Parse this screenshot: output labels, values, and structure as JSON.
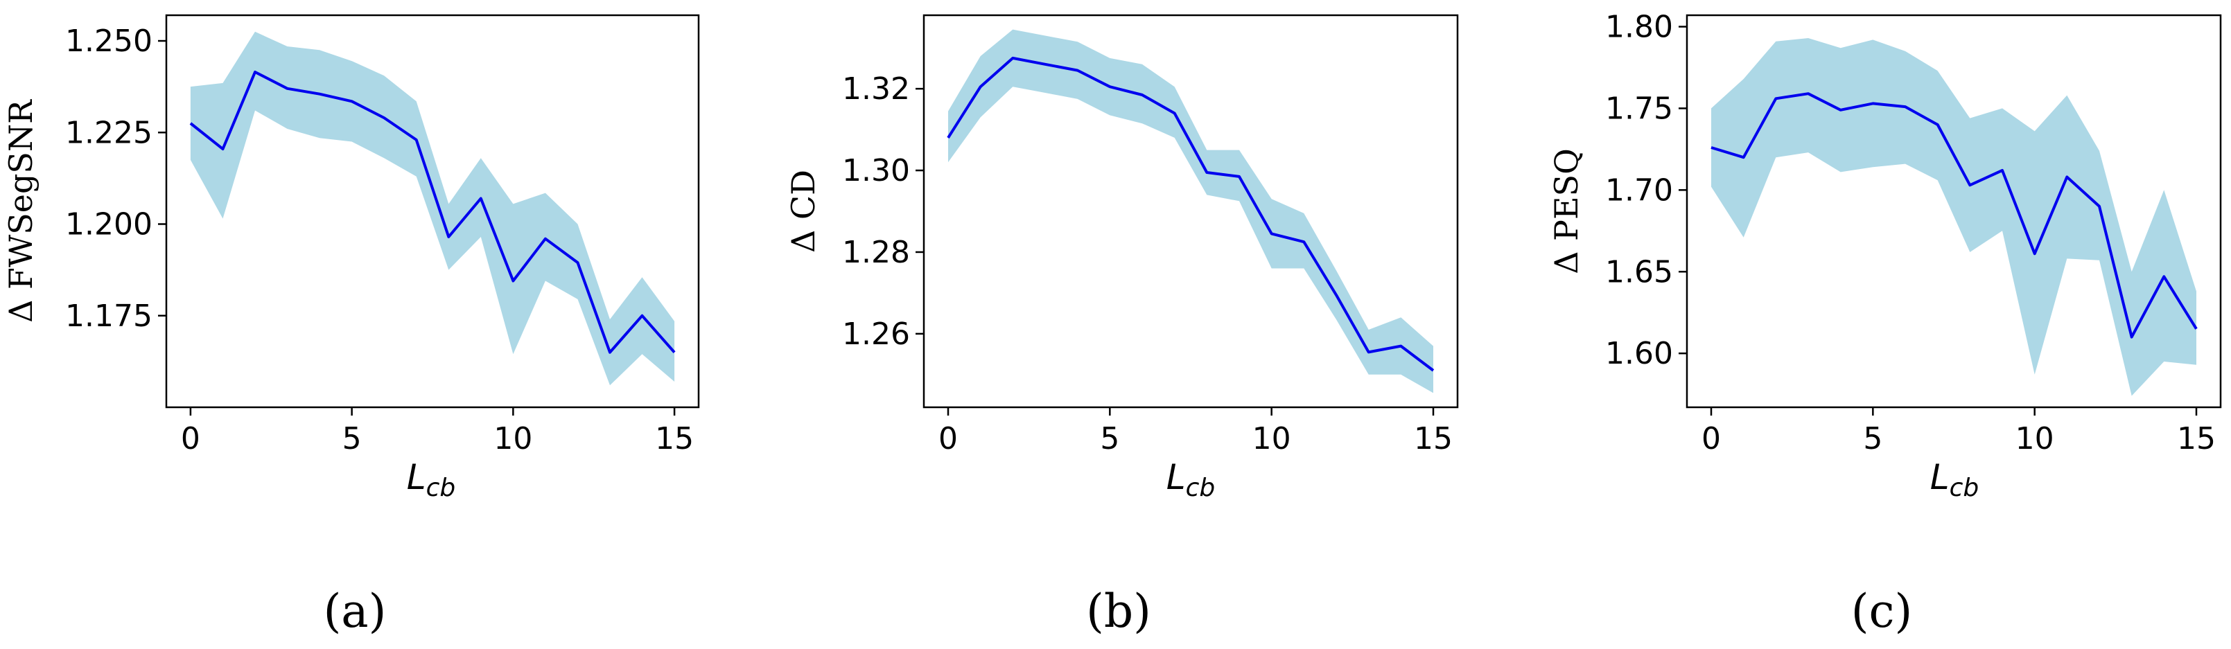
{
  "chart_data": [
    {
      "type": "line",
      "panel": "a",
      "caption": "(a)",
      "xlabel_main": "L",
      "xlabel_sub": "cb",
      "ylabel": "Δ FWSegSNR",
      "xlim": [
        -0.75,
        15.75
      ],
      "ylim": [
        1.15,
        1.257
      ],
      "xticks": [
        0,
        5,
        10,
        15
      ],
      "xtick_labels": [
        "0",
        "5",
        "10",
        "15"
      ],
      "yticks": [
        1.175,
        1.2,
        1.225,
        1.25
      ],
      "ytick_labels": [
        "1.175",
        "1.200",
        "1.225",
        "1.250"
      ],
      "line_color": "#0000ee",
      "band_color": "#add8e6",
      "x": [
        0,
        1,
        2,
        3,
        4,
        5,
        6,
        7,
        8,
        9,
        10,
        11,
        12,
        13,
        14,
        15
      ],
      "y": [
        1.2275,
        1.2205,
        1.2415,
        1.237,
        1.2355,
        1.2335,
        1.229,
        1.223,
        1.1965,
        1.207,
        1.1845,
        1.196,
        1.1895,
        1.165,
        1.175,
        1.165
      ],
      "upper": [
        1.2375,
        1.2385,
        1.2525,
        1.2485,
        1.2475,
        1.2445,
        1.2405,
        1.2335,
        1.2055,
        1.218,
        1.2055,
        1.2085,
        1.2,
        1.174,
        1.1855,
        1.1735
      ],
      "lower": [
        1.2175,
        1.2015,
        1.231,
        1.226,
        1.2235,
        1.2225,
        1.218,
        1.213,
        1.1875,
        1.1965,
        1.1645,
        1.1845,
        1.1795,
        1.156,
        1.1645,
        1.157
      ]
    },
    {
      "type": "line",
      "panel": "b",
      "caption": "(b)",
      "xlabel_main": "L",
      "xlabel_sub": "cb",
      "ylabel": "Δ CD",
      "xlim": [
        -0.75,
        15.75
      ],
      "ylim": [
        1.242,
        1.338
      ],
      "xticks": [
        0,
        5,
        10,
        15
      ],
      "xtick_labels": [
        "0",
        "5",
        "10",
        "15"
      ],
      "yticks": [
        1.26,
        1.28,
        1.3,
        1.32
      ],
      "ytick_labels": [
        "1.26",
        "1.28",
        "1.30",
        "1.32"
      ],
      "line_color": "#0000ee",
      "band_color": "#add8e6",
      "x": [
        0,
        1,
        2,
        3,
        4,
        5,
        6,
        7,
        8,
        9,
        10,
        11,
        12,
        13,
        14,
        15
      ],
      "y": [
        1.308,
        1.3205,
        1.3275,
        1.326,
        1.3245,
        1.3205,
        1.3185,
        1.314,
        1.2995,
        1.2985,
        1.2845,
        1.2825,
        1.2695,
        1.2555,
        1.257,
        1.251
      ],
      "upper": [
        1.3145,
        1.328,
        1.3345,
        1.333,
        1.3315,
        1.3275,
        1.326,
        1.3205,
        1.305,
        1.305,
        1.293,
        1.2895,
        1.2755,
        1.261,
        1.264,
        1.257
      ],
      "lower": [
        1.302,
        1.313,
        1.3205,
        1.319,
        1.3175,
        1.3135,
        1.3115,
        1.308,
        1.294,
        1.2925,
        1.276,
        1.276,
        1.2635,
        1.25,
        1.25,
        1.2455
      ]
    },
    {
      "type": "line",
      "panel": "c",
      "caption": "(c)",
      "xlabel_main": "L",
      "xlabel_sub": "cb",
      "ylabel": "Δ PESQ",
      "xlim": [
        -0.75,
        15.75
      ],
      "ylim": [
        1.567,
        1.807
      ],
      "xticks": [
        0,
        5,
        10,
        15
      ],
      "xtick_labels": [
        "0",
        "5",
        "10",
        "15"
      ],
      "yticks": [
        1.6,
        1.65,
        1.7,
        1.75,
        1.8
      ],
      "ytick_labels": [
        "1.60",
        "1.65",
        "1.70",
        "1.75",
        "1.80"
      ],
      "line_color": "#0000ee",
      "band_color": "#add8e6",
      "x": [
        0,
        1,
        2,
        3,
        4,
        5,
        6,
        7,
        8,
        9,
        10,
        11,
        12,
        13,
        14,
        15
      ],
      "y": [
        1.726,
        1.72,
        1.756,
        1.759,
        1.749,
        1.753,
        1.751,
        1.74,
        1.703,
        1.712,
        1.661,
        1.708,
        1.69,
        1.61,
        1.647,
        1.615
      ],
      "upper": [
        1.75,
        1.768,
        1.791,
        1.793,
        1.787,
        1.792,
        1.785,
        1.773,
        1.744,
        1.75,
        1.736,
        1.758,
        1.724,
        1.65,
        1.7,
        1.638
      ],
      "lower": [
        1.702,
        1.671,
        1.72,
        1.723,
        1.711,
        1.714,
        1.716,
        1.706,
        1.662,
        1.675,
        1.587,
        1.658,
        1.657,
        1.574,
        1.595,
        1.593
      ]
    }
  ]
}
